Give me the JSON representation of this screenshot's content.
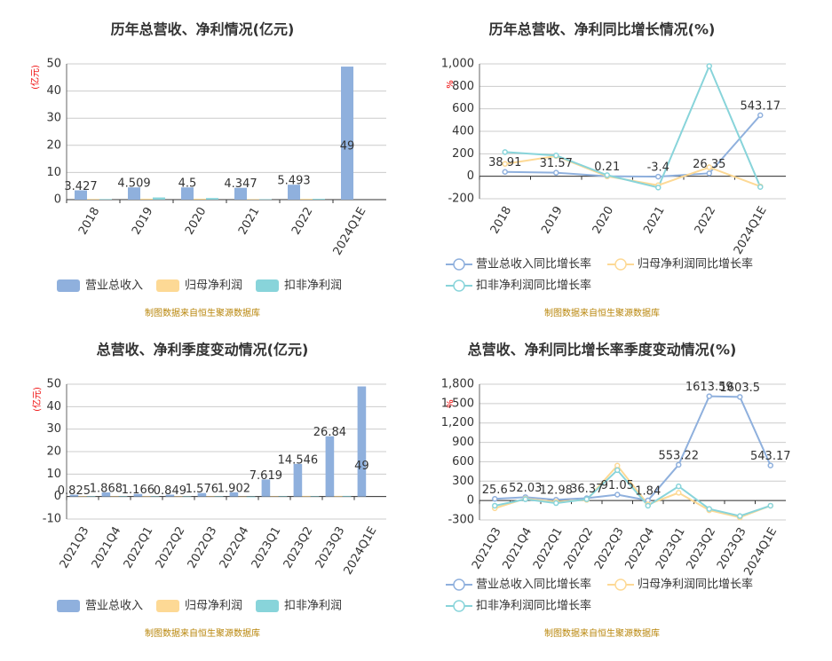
{
  "chart_data": [
    {
      "type": "bar",
      "title": "历年总营收、净利情况(亿元)",
      "y_label": "(亿元)",
      "source": "制图数据来自恒生聚源数据库",
      "categories": [
        "2018",
        "2019",
        "2020",
        "2021",
        "2022",
        "2024Q1E"
      ],
      "series": [
        {
          "name": "营业总收入",
          "color": "#8fb0dd",
          "values": [
            3.427,
            4.509,
            4.5,
            4.347,
            5.493,
            49
          ]
        },
        {
          "name": "归母净利润",
          "color": "#fdd995",
          "values": [
            0.25,
            0.35,
            0.35,
            0.2,
            0.3,
            null
          ]
        },
        {
          "name": "扣非净利润",
          "color": "#88d4da",
          "values": [
            0.2,
            0.8,
            0.6,
            0.15,
            0.3,
            null
          ]
        }
      ],
      "ylim": [
        0,
        50
      ],
      "yticks": [
        0,
        10,
        20,
        30,
        40,
        50
      ],
      "grid": true
    },
    {
      "type": "line",
      "title": "历年总营收、净利同比增长情况(%)",
      "y_label": "%",
      "source": "制图数据来自恒生聚源数据库",
      "categories": [
        "2018",
        "2019",
        "2020",
        "2021",
        "2022",
        "2024Q1E"
      ],
      "series": [
        {
          "name": "营业总收入同比增长率",
          "color": "#8fb0dd",
          "values": [
            38.91,
            31.57,
            0.21,
            -3.4,
            26.35,
            543.17
          ]
        },
        {
          "name": "归母净利润同比增长率",
          "color": "#fdd995",
          "values": [
            110,
            180,
            0,
            -80,
            80,
            -90
          ]
        },
        {
          "name": "扣非净利润同比增长率",
          "color": "#88d4da",
          "values": [
            215,
            185,
            10,
            -100,
            980,
            -95
          ]
        }
      ],
      "ylim": [
        -200,
        1000
      ],
      "yticks": [
        -200,
        0,
        200,
        400,
        600,
        800,
        {
          "value": 1000,
          "label": "1,000"
        }
      ],
      "grid": true
    },
    {
      "type": "bar",
      "title": "总营收、净利季度变动情况(亿元)",
      "y_label": "(亿元)",
      "source": "制图数据来自恒生聚源数据库",
      "categories": [
        "2021Q3",
        "2021Q4",
        "2022Q1",
        "2022Q2",
        "2022Q3",
        "2022Q4",
        "2023Q1",
        "2023Q2",
        "2023Q3",
        "2024Q1E"
      ],
      "series": [
        {
          "name": "营业总收入",
          "color": "#8fb0dd",
          "values": [
            0.825,
            1.868,
            1.166,
            0.849,
            1.576,
            1.902,
            7.619,
            14.546,
            26.84,
            49
          ]
        },
        {
          "name": "归母净利润",
          "color": "#fdd995",
          "values": [
            0.1,
            0.2,
            0.1,
            0.05,
            0.2,
            -0.2,
            0.2,
            0.3,
            0.3,
            null
          ]
        },
        {
          "name": "扣非净利润",
          "color": "#88d4da",
          "values": [
            0.08,
            0.15,
            0.05,
            0.04,
            0.15,
            -0.3,
            0.2,
            0.2,
            0.3,
            null
          ]
        }
      ],
      "ylim": [
        -10,
        50
      ],
      "yticks": [
        -10,
        0,
        10,
        20,
        30,
        40,
        50
      ],
      "grid": true
    },
    {
      "type": "line",
      "title": "总营收、净利同比增长率季度变动情况(%)",
      "y_label": "%",
      "source": "制图数据来自恒生聚源数据库",
      "categories": [
        "2021Q3",
        "2021Q4",
        "2022Q1",
        "2022Q2",
        "2022Q3",
        "2022Q4",
        "2023Q1",
        "2023Q2",
        "2023Q3",
        "2024Q1E"
      ],
      "series": [
        {
          "name": "营业总收入同比增长率",
          "color": "#8fb0dd",
          "values": [
            25.6,
            52.03,
            12.98,
            36.37,
            91.05,
            1.84,
            553.22,
            1613.59,
            1603.5,
            543.17
          ]
        },
        {
          "name": "归母净利润同比增长率",
          "color": "#fdd995",
          "values": [
            -120,
            30,
            -20,
            10,
            540,
            -60,
            120,
            -150,
            -260,
            -80
          ]
        },
        {
          "name": "扣非净利润同比增长率",
          "color": "#88d4da",
          "values": [
            -80,
            20,
            -40,
            20,
            470,
            -80,
            220,
            -130,
            -240,
            -80
          ]
        }
      ],
      "ylim": [
        -300,
        1800
      ],
      "yticks": [
        -300,
        0,
        300,
        600,
        900,
        {
          "value": 1200,
          "label": "1,200"
        },
        {
          "value": 1500,
          "label": "1,500"
        },
        {
          "value": 1800,
          "label": "1,800"
        }
      ],
      "grid": true
    }
  ]
}
